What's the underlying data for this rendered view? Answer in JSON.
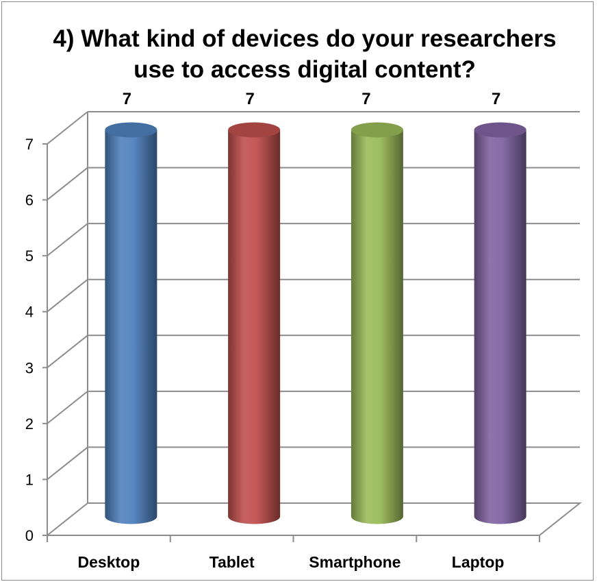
{
  "chart_data": {
    "type": "bar",
    "title_lines": [
      "4) What kind of devices do your researchers",
      "use to access digital content?"
    ],
    "categories": [
      "Desktop",
      "Tablet",
      "Smartphone",
      "Laptop"
    ],
    "values": [
      7,
      7,
      7,
      7
    ],
    "data_labels": [
      "7",
      "7",
      "7",
      "7"
    ],
    "colors": [
      "#4f81bd",
      "#c0504d",
      "#9bbb59",
      "#8064a2"
    ],
    "ylim": [
      0,
      7
    ],
    "yticks": [
      "0",
      "1",
      "2",
      "3",
      "4",
      "5",
      "6",
      "7"
    ],
    "grid": true,
    "legend": "none",
    "style": "3d-cylinder"
  }
}
